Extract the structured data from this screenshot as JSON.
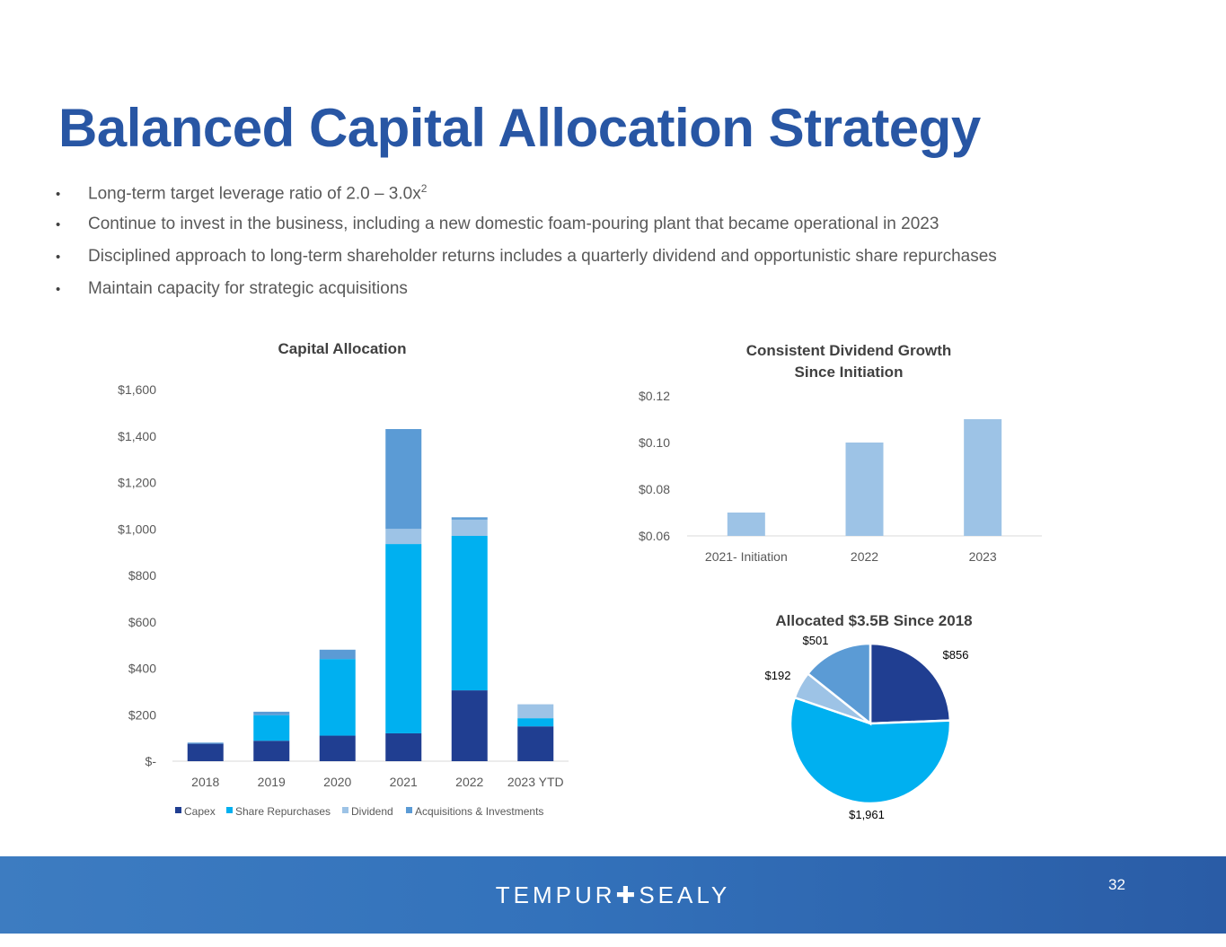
{
  "slide": {
    "title": "Balanced Capital Allocation Strategy",
    "bullets": [
      {
        "text": "Long-term target leverage ratio of 2.0 – 3.0x",
        "sup": "2"
      },
      {
        "text": "Continue to invest in the business, including a new domestic foam-pouring plant that became operational in 2023",
        "sup": ""
      },
      {
        "text": "Disciplined approach to long-term shareholder returns includes a quarterly dividend and opportunistic share repurchases",
        "sup": ""
      },
      {
        "text": "Maintain capacity for strategic acquisitions",
        "sup": ""
      }
    ],
    "bullet_glyph": "•",
    "page_number": "32",
    "logo": {
      "left": "TEMPUR",
      "mark": "✚",
      "right": "SEALY"
    },
    "colors": {
      "title": "#2856a4",
      "capex": "#203e91",
      "share_repurchases": "#00b0f0",
      "dividend": "#9dc3e6",
      "acquisitions": "#5b9bd5",
      "footer": "#3372bb"
    }
  },
  "chart_data": [
    {
      "type": "bar",
      "stacked": true,
      "title": "Capital Allocation",
      "categories": [
        "2018",
        "2019",
        "2020",
        "2021",
        "2022",
        "2023 YTD"
      ],
      "series": [
        {
          "name": "Capex",
          "values": [
            75,
            88,
            110,
            120,
            305,
            150
          ]
        },
        {
          "name": "Share Repurchases",
          "values": [
            0,
            110,
            330,
            815,
            665,
            35
          ]
        },
        {
          "name": "Dividend",
          "values": [
            0,
            0,
            0,
            65,
            70,
            60
          ]
        },
        {
          "name": "Acquisitions & Investments",
          "values": [
            5,
            15,
            40,
            430,
            10,
            0
          ]
        }
      ],
      "ylim": [
        0,
        1600
      ],
      "yticks": [
        0,
        200,
        400,
        600,
        800,
        1000,
        1200,
        1400,
        1600
      ],
      "ytick_labels": [
        "$-",
        "$200",
        "$400",
        "$600",
        "$800",
        "$1,000",
        "$1,200",
        "$1,400",
        "$1,600"
      ],
      "grid": false,
      "legend": "bottom"
    },
    {
      "type": "bar",
      "title_lines": [
        "Consistent Dividend Growth",
        "Since Initiation"
      ],
      "categories": [
        "2021- Initiation",
        "2022",
        "2023"
      ],
      "values": [
        0.07,
        0.1,
        0.11
      ],
      "ylim": [
        0.06,
        0.12
      ],
      "yticks": [
        0.06,
        0.08,
        0.1,
        0.12
      ],
      "ytick_labels": [
        "$0.06",
        "$0.08",
        "$0.10",
        "$0.12"
      ],
      "grid": false
    },
    {
      "type": "pie",
      "title": "Allocated $3.5B Since 2018",
      "slices": [
        {
          "label": "$856",
          "value": 856
        },
        {
          "label": "$1,961",
          "value": 1961
        },
        {
          "label": "$192",
          "value": 192
        },
        {
          "label": "$501",
          "value": 501
        }
      ]
    }
  ]
}
